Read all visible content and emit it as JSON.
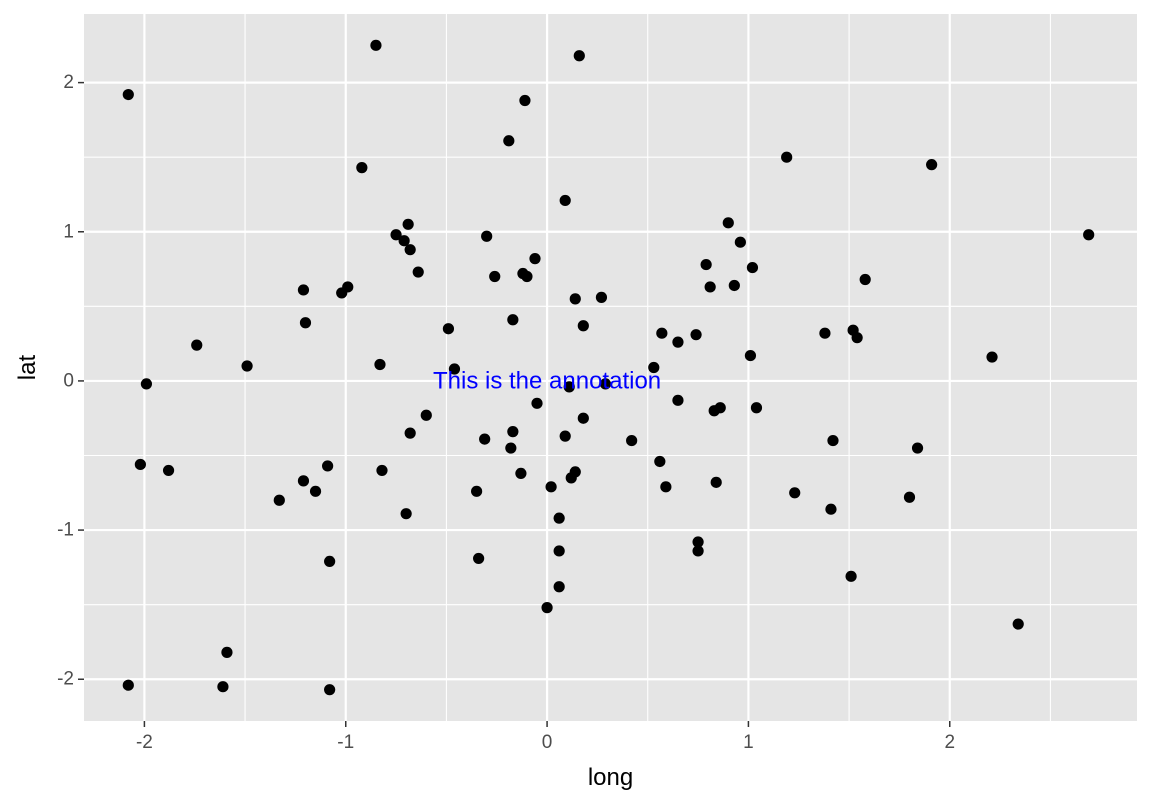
{
  "chart_data": {
    "type": "scatter",
    "xlabel": "long",
    "ylabel": "lat",
    "xlim": [
      -2.3,
      2.93
    ],
    "ylim": [
      -2.28,
      2.46
    ],
    "x_ticks": [
      -2,
      -1,
      0,
      1,
      2
    ],
    "y_ticks": [
      -2,
      -1,
      0,
      1,
      2
    ],
    "x_tick_labels": [
      "-2",
      "-1",
      "0",
      "1",
      "2"
    ],
    "y_tick_labels": [
      "-2",
      "-1",
      "0",
      "1",
      "2"
    ],
    "grid": true,
    "panel_background": "#e5e5e5",
    "gridline_color": "#ffffff",
    "point_color": "#000000",
    "annotation": {
      "text": "This is the annotation",
      "x": 0,
      "y": 0,
      "color": "#0000ff"
    },
    "points": [
      {
        "x": -2.08,
        "y": 1.92
      },
      {
        "x": -0.85,
        "y": 2.25
      },
      {
        "x": 0.16,
        "y": 2.18
      },
      {
        "x": -0.11,
        "y": 1.88
      },
      {
        "x": -0.19,
        "y": 1.61
      },
      {
        "x": -0.92,
        "y": 1.43
      },
      {
        "x": 1.19,
        "y": 1.5
      },
      {
        "x": 1.91,
        "y": 1.45
      },
      {
        "x": 0.09,
        "y": 1.21
      },
      {
        "x": 2.69,
        "y": 0.98
      },
      {
        "x": 0.9,
        "y": 1.06
      },
      {
        "x": 0.96,
        "y": 0.93
      },
      {
        "x": -0.69,
        "y": 1.05
      },
      {
        "x": -0.75,
        "y": 0.98
      },
      {
        "x": -0.71,
        "y": 0.94
      },
      {
        "x": -0.68,
        "y": 0.88
      },
      {
        "x": -0.3,
        "y": 0.97
      },
      {
        "x": -0.06,
        "y": 0.82
      },
      {
        "x": 0.79,
        "y": 0.78
      },
      {
        "x": 1.02,
        "y": 0.76
      },
      {
        "x": -0.64,
        "y": 0.73
      },
      {
        "x": -0.26,
        "y": 0.7
      },
      {
        "x": -0.12,
        "y": 0.72
      },
      {
        "x": -0.1,
        "y": 0.7
      },
      {
        "x": 1.58,
        "y": 0.68
      },
      {
        "x": 0.81,
        "y": 0.63
      },
      {
        "x": 0.93,
        "y": 0.64
      },
      {
        "x": -0.99,
        "y": 0.63
      },
      {
        "x": -1.02,
        "y": 0.59
      },
      {
        "x": -1.21,
        "y": 0.61
      },
      {
        "x": 0.14,
        "y": 0.55
      },
      {
        "x": 0.27,
        "y": 0.56
      },
      {
        "x": -1.2,
        "y": 0.39
      },
      {
        "x": -0.17,
        "y": 0.41
      },
      {
        "x": 0.18,
        "y": 0.37
      },
      {
        "x": -0.49,
        "y": 0.35
      },
      {
        "x": 0.57,
        "y": 0.32
      },
      {
        "x": 0.74,
        "y": 0.31
      },
      {
        "x": 1.38,
        "y": 0.32
      },
      {
        "x": 1.52,
        "y": 0.34
      },
      {
        "x": 1.54,
        "y": 0.29
      },
      {
        "x": 0.65,
        "y": 0.26
      },
      {
        "x": -1.74,
        "y": 0.24
      },
      {
        "x": 1.01,
        "y": 0.17
      },
      {
        "x": 2.21,
        "y": 0.16
      },
      {
        "x": -0.83,
        "y": 0.11
      },
      {
        "x": -1.49,
        "y": 0.1
      },
      {
        "x": -0.46,
        "y": 0.08
      },
      {
        "x": 0.53,
        "y": 0.09
      },
      {
        "x": 0.29,
        "y": -0.02
      },
      {
        "x": -1.99,
        "y": -0.02
      },
      {
        "x": 0.11,
        "y": -0.04
      },
      {
        "x": -0.05,
        "y": -0.15
      },
      {
        "x": 0.65,
        "y": -0.13
      },
      {
        "x": 0.83,
        "y": -0.2
      },
      {
        "x": 0.86,
        "y": -0.18
      },
      {
        "x": 1.04,
        "y": -0.18
      },
      {
        "x": -0.6,
        "y": -0.23
      },
      {
        "x": 0.18,
        "y": -0.25
      },
      {
        "x": -0.17,
        "y": -0.34
      },
      {
        "x": -0.68,
        "y": -0.35
      },
      {
        "x": -0.31,
        "y": -0.39
      },
      {
        "x": 0.09,
        "y": -0.37
      },
      {
        "x": 0.42,
        "y": -0.4
      },
      {
        "x": 1.42,
        "y": -0.4
      },
      {
        "x": -0.18,
        "y": -0.45
      },
      {
        "x": 1.84,
        "y": -0.45
      },
      {
        "x": 0.56,
        "y": -0.54
      },
      {
        "x": -2.02,
        "y": -0.56
      },
      {
        "x": -1.09,
        "y": -0.57
      },
      {
        "x": -1.88,
        "y": -0.6
      },
      {
        "x": -0.82,
        "y": -0.6
      },
      {
        "x": -0.13,
        "y": -0.62
      },
      {
        "x": 0.14,
        "y": -0.61
      },
      {
        "x": 0.12,
        "y": -0.65
      },
      {
        "x": -1.21,
        "y": -0.67
      },
      {
        "x": 0.84,
        "y": -0.68
      },
      {
        "x": 0.02,
        "y": -0.71
      },
      {
        "x": 0.59,
        "y": -0.71
      },
      {
        "x": -1.15,
        "y": -0.74
      },
      {
        "x": -0.35,
        "y": -0.74
      },
      {
        "x": 1.23,
        "y": -0.75
      },
      {
        "x": -1.33,
        "y": -0.8
      },
      {
        "x": 1.8,
        "y": -0.78
      },
      {
        "x": 1.41,
        "y": -0.86
      },
      {
        "x": -0.7,
        "y": -0.89
      },
      {
        "x": 0.06,
        "y": -0.92
      },
      {
        "x": 0.75,
        "y": -1.08
      },
      {
        "x": 0.06,
        "y": -1.14
      },
      {
        "x": 0.75,
        "y": -1.14
      },
      {
        "x": -0.34,
        "y": -1.19
      },
      {
        "x": -1.08,
        "y": -1.21
      },
      {
        "x": 1.51,
        "y": -1.31
      },
      {
        "x": 0.06,
        "y": -1.38
      },
      {
        "x": 0.0,
        "y": -1.52
      },
      {
        "x": 2.34,
        "y": -1.63
      },
      {
        "x": -1.59,
        "y": -1.82
      },
      {
        "x": -2.08,
        "y": -2.04
      },
      {
        "x": -1.61,
        "y": -2.05
      },
      {
        "x": -1.08,
        "y": -2.07
      }
    ]
  }
}
